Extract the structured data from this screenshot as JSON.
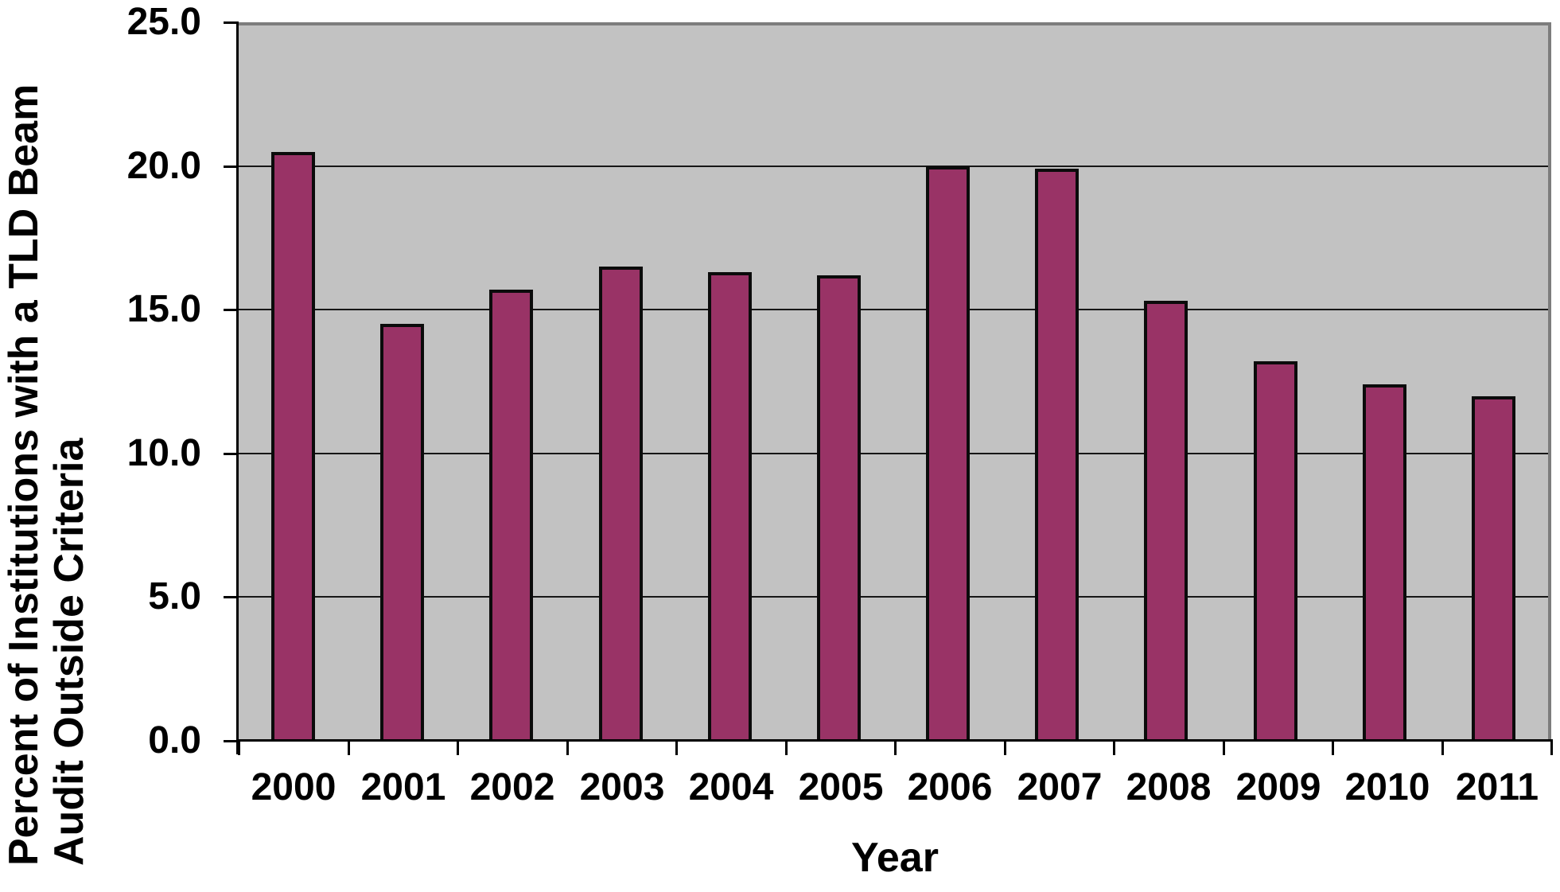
{
  "chart_data": {
    "type": "bar",
    "title": "",
    "xlabel": "Year",
    "ylabel": "Percent of Institutions with a TLD Beam Audit Outside Criteria",
    "ylabel_lines": [
      "Percent of Institutions with a TLD Beam",
      "Audit Outside Criteria"
    ],
    "categories": [
      "2000",
      "2001",
      "2002",
      "2003",
      "2004",
      "2005",
      "2006",
      "2007",
      "2008",
      "2009",
      "2010",
      "2011"
    ],
    "values": [
      20.5,
      14.5,
      15.7,
      16.5,
      16.3,
      16.2,
      20.0,
      19.9,
      15.3,
      13.2,
      12.4,
      12.0
    ],
    "ylim": [
      0,
      25
    ],
    "ytick_step": 5,
    "ytick_labels": [
      "25.0",
      "20.0",
      "15.0",
      "10.0",
      "5.0",
      "0.0"
    ],
    "grid": true,
    "legend_position": "none"
  },
  "colors": {
    "page_bg": "#ffffff",
    "plot_bg": "#c2c2c2",
    "plot_border": "#7d7d7d",
    "gridline": "#161616",
    "axis": "#000000",
    "bar_fill": "#993366",
    "bar_border": "#0b0b0b",
    "text": "#000000"
  }
}
